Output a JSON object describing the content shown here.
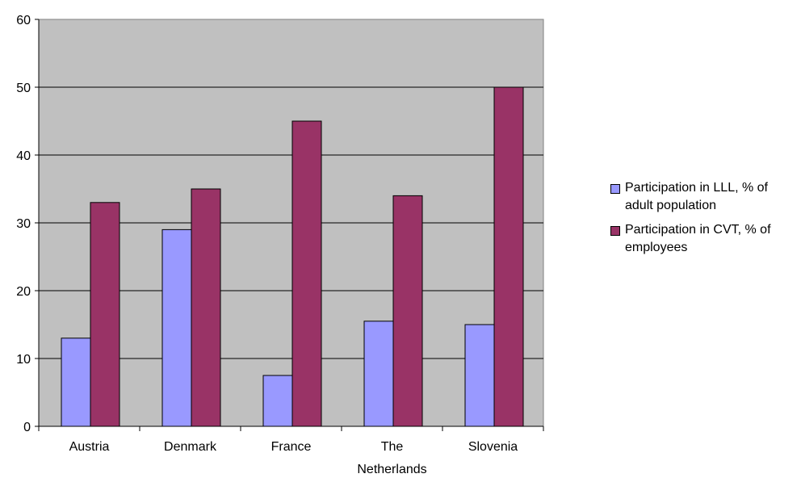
{
  "chart_data": {
    "type": "bar",
    "categories": [
      "Austria",
      "Denmark",
      "France",
      "The Netherlands",
      "Slovenia"
    ],
    "category_lines": [
      [
        "Austria"
      ],
      [
        "Denmark"
      ],
      [
        "France"
      ],
      [
        "The",
        "Netherlands"
      ],
      [
        "Slovenia"
      ]
    ],
    "series": [
      {
        "name": "Participation in LLL, % of adult population",
        "values": [
          13,
          29,
          7.5,
          15.5,
          15
        ],
        "color": "#9999ff"
      },
      {
        "name": "Participation in CVT, % of employees",
        "values": [
          33,
          35,
          45,
          34,
          50
        ],
        "color": "#993366"
      }
    ],
    "ylim": [
      0,
      60
    ],
    "yticks": [
      "0",
      "10",
      "20",
      "30",
      "40",
      "50",
      "60"
    ],
    "grid": true,
    "legend_position": "right",
    "plot_background": "#c0c0c0"
  }
}
